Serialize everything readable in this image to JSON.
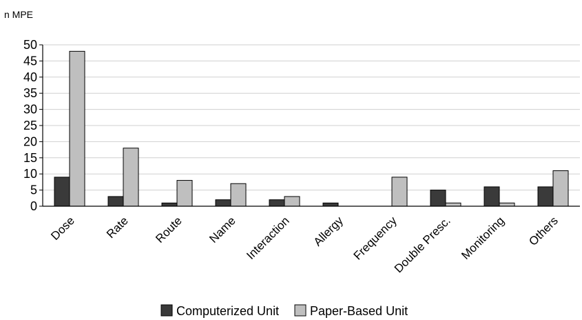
{
  "chart_data": {
    "type": "bar",
    "ylabel": "n MPE",
    "xlabel": "",
    "ylim": [
      0,
      50
    ],
    "yticks": [
      0,
      5,
      10,
      15,
      20,
      25,
      30,
      35,
      40,
      45,
      50
    ],
    "grid": true,
    "legend_position": "bottom",
    "categories": [
      "Dose",
      "Rate",
      "Route",
      "Name",
      "Interaction",
      "Allergy",
      "Frequency",
      "Double Presc.",
      "Monitoring",
      "Others"
    ],
    "series": [
      {
        "name": "Computerized Unit",
        "color": "#3a3a3a",
        "values": [
          9,
          3,
          1,
          2,
          2,
          1,
          0,
          5,
          6,
          6
        ]
      },
      {
        "name": "Paper-Based Unit",
        "color": "#bfbfbf",
        "values": [
          48,
          18,
          8,
          7,
          3,
          0,
          9,
          1,
          1,
          11
        ]
      }
    ]
  }
}
